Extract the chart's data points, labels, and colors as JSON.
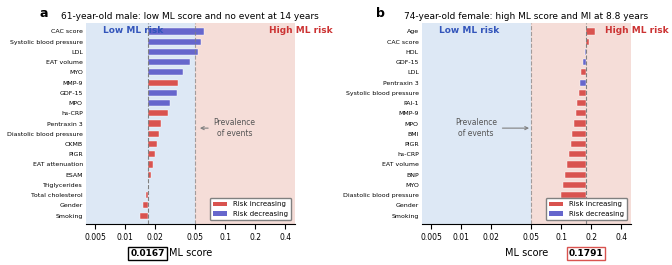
{
  "panel_a": {
    "title": "61-year-old male: low ML score and no event at 14 years",
    "ml_score": 0.0167,
    "prevalence_line": 0.05,
    "ylabel_features": [
      "CAC score",
      "Systolic blood pressure",
      "LDL",
      "EAT volume",
      "MYO",
      "MMP-9",
      "GDF-15",
      "MPO",
      "hs-CRP",
      "Pentraxin 3",
      "Diastolic blood pressure",
      "CKMB",
      "PIGR",
      "EAT attenuation",
      "ESAM",
      "Triglycerides",
      "Total cholesterol",
      "Gender",
      "Smoking"
    ],
    "bar_values": [
      0.062,
      0.057,
      0.053,
      0.045,
      0.038,
      0.034,
      0.033,
      0.028,
      0.027,
      0.023,
      0.022,
      0.021,
      0.02,
      0.019,
      0.018,
      0.017,
      0.016,
      0.015,
      0.014
    ],
    "bar_types": [
      "decreasing",
      "decreasing",
      "decreasing",
      "decreasing",
      "decreasing",
      "increasing",
      "decreasing",
      "decreasing",
      "increasing",
      "increasing",
      "increasing",
      "increasing",
      "increasing",
      "increasing",
      "increasing",
      "increasing",
      "increasing",
      "increasing",
      "increasing"
    ],
    "xlim_log": [
      0.004,
      0.5
    ],
    "xticks": [
      0.005,
      0.01,
      0.02,
      0.05,
      0.1,
      0.2,
      0.4
    ],
    "xticklabels": [
      "0.005",
      "0.01",
      "0.02",
      "0.05",
      "0.1",
      "0.2",
      "0.4"
    ]
  },
  "panel_b": {
    "title": "74-year-old female: high ML score and MI at 8.8 years",
    "ml_score": 0.1791,
    "prevalence_line": 0.05,
    "ylabel_features": [
      "Age",
      "CAC score",
      "HDL",
      "GDF-15",
      "LDL",
      "Pentraxin 3",
      "Systolic blood pressure",
      "PAI-1",
      "MMP-9",
      "MPO",
      "BMI",
      "PIGR",
      "hs-CRP",
      "EAT volume",
      "BNP",
      "MYO",
      "Diastolic blood pressure",
      "Gender",
      "Smoking"
    ],
    "bar_values": [
      0.22,
      0.19,
      0.175,
      0.165,
      0.16,
      0.155,
      0.15,
      0.145,
      0.14,
      0.135,
      0.13,
      0.125,
      0.12,
      0.115,
      0.11,
      0.105,
      0.1,
      0.095,
      0.09
    ],
    "bar_types": [
      "increasing",
      "increasing",
      "decreasing",
      "decreasing",
      "increasing",
      "decreasing",
      "increasing",
      "increasing",
      "increasing",
      "increasing",
      "increasing",
      "increasing",
      "increasing",
      "increasing",
      "increasing",
      "increasing",
      "increasing",
      "increasing",
      "increasing"
    ],
    "xlim_log": [
      0.004,
      0.5
    ],
    "xticks": [
      0.005,
      0.01,
      0.02,
      0.05,
      0.1,
      0.2,
      0.4
    ],
    "xticklabels": [
      "0.005",
      "0.01",
      "0.02",
      "0.05",
      "0.1",
      "0.2",
      "0.4"
    ]
  },
  "color_increasing": "#d9534f",
  "color_decreasing": "#6666cc",
  "color_low_risk_bg": "#dde8f5",
  "color_high_risk_bg": "#f5ddd8",
  "low_risk_label": "Low ML risk",
  "high_risk_label": "High ML risk",
  "prevalence_label": "Prevalence\nof events",
  "legend_increasing": "Risk increasing",
  "legend_decreasing": "Risk decreasing",
  "xlabel": "ML score"
}
